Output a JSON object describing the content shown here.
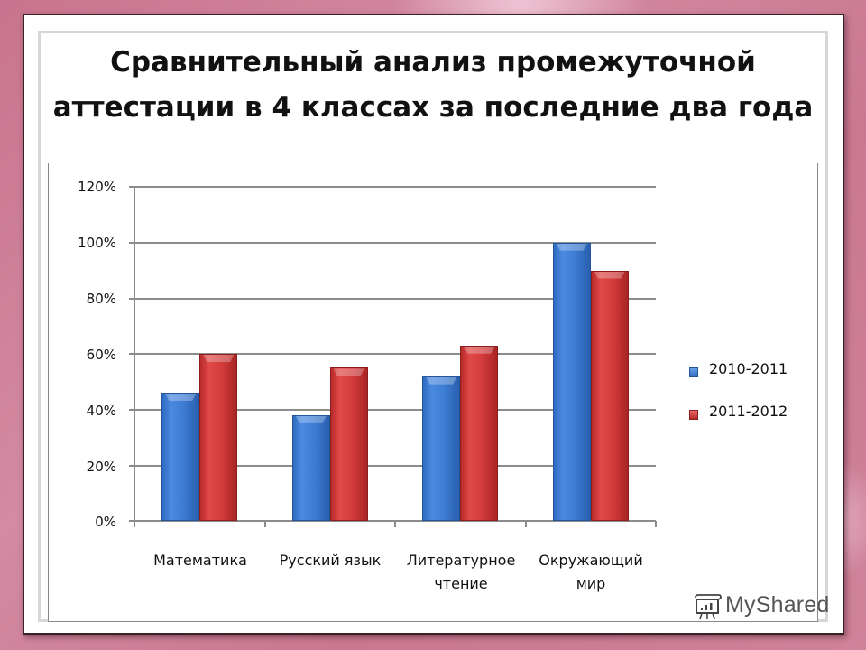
{
  "slide": {
    "title_line1": "Сравнительный анализ промежуточной",
    "title_line2": "аттестации в 4 классах за последние два года"
  },
  "watermark": {
    "text": "MyShared",
    "icon": "presentation-board-icon"
  },
  "chart_data": {
    "type": "bar",
    "title": "Сравнительный анализ промежуточной аттестации в 4 классах за последние два года",
    "xlabel": "",
    "ylabel": "",
    "categories": [
      "Математика",
      "Русский язык",
      "Литературное чтение",
      "Окружающий мир"
    ],
    "category_lines": [
      [
        "Математика"
      ],
      [
        "Русский язык"
      ],
      [
        "Литературное",
        "чтение"
      ],
      [
        "Окружающий",
        "мир"
      ]
    ],
    "series": [
      {
        "name": "2010-2011",
        "color": "#3c7bd2",
        "values": [
          46,
          38,
          52,
          100
        ]
      },
      {
        "name": "2011-2012",
        "color": "#d23b3b",
        "values": [
          60,
          55,
          63,
          90
        ]
      }
    ],
    "yticks": [
      "0%",
      "20%",
      "40%",
      "60%",
      "80%",
      "100%",
      "120%"
    ],
    "ylim": [
      0,
      120
    ],
    "unit": "%",
    "grid": true,
    "legend_position": "right"
  }
}
